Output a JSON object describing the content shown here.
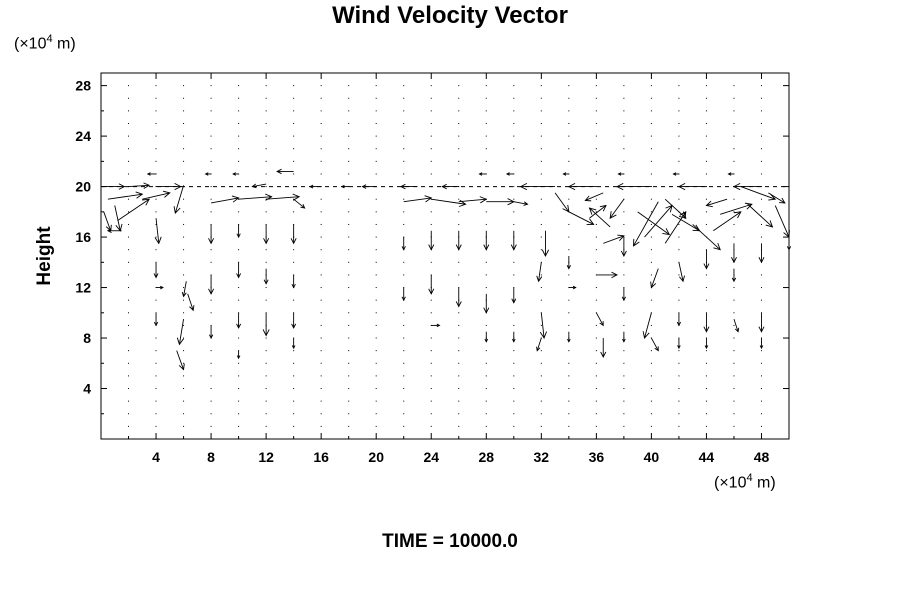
{
  "chart_data": {
    "type": "vector-field",
    "title": "Wind Velocity Vector",
    "ylabel": "Height",
    "y_unit": {
      "prefix": "(×10",
      "exp": "4",
      "suffix": " m)"
    },
    "x_unit": {
      "prefix": "(×10",
      "exp": "4",
      "suffix": " m)"
    },
    "xlim": [
      0,
      50
    ],
    "ylim": [
      0,
      29
    ],
    "xticks": [
      4,
      8,
      12,
      16,
      20,
      24,
      28,
      32,
      36,
      40,
      44,
      48
    ],
    "yticks": [
      4,
      8,
      12,
      16,
      20,
      24,
      28
    ],
    "grid": false,
    "reference_line_y": 20,
    "vectors": [
      {
        "x": 0.2,
        "y": 20.0,
        "u": 1.5,
        "v": 0.0
      },
      {
        "x": 2.0,
        "y": 20.0,
        "u": 1.5,
        "v": 0.1
      },
      {
        "x": 4.0,
        "y": 20.0,
        "u": 1.8,
        "v": 0.0
      },
      {
        "x": 6.0,
        "y": 20.1,
        "u": -0.6,
        "v": -2.2
      },
      {
        "x": 0.5,
        "y": 19.0,
        "u": 2.5,
        "v": 0.4
      },
      {
        "x": 1.0,
        "y": 18.5,
        "u": 0.4,
        "v": -2.0
      },
      {
        "x": 3.0,
        "y": 19.0,
        "u": 2.0,
        "v": 0.5
      },
      {
        "x": 1.2,
        "y": 17.3,
        "u": 2.3,
        "v": 1.7
      },
      {
        "x": 8.0,
        "y": 18.7,
        "u": 2.0,
        "v": 0.4
      },
      {
        "x": 10.0,
        "y": 19.0,
        "u": 2.4,
        "v": 0.2
      },
      {
        "x": 12.0,
        "y": 19.0,
        "u": 2.4,
        "v": 0.2
      },
      {
        "x": 14.0,
        "y": 19.0,
        "u": 0.8,
        "v": -0.7
      },
      {
        "x": 12.0,
        "y": 20.2,
        "u": -1.0,
        "v": -0.2
      },
      {
        "x": 14.0,
        "y": 21.2,
        "u": -1.2,
        "v": 0.0
      },
      {
        "x": 22.0,
        "y": 18.8,
        "u": 2.0,
        "v": 0.3
      },
      {
        "x": 24.0,
        "y": 19.0,
        "u": 2.5,
        "v": -0.4
      },
      {
        "x": 26.0,
        "y": 18.8,
        "u": 2.0,
        "v": 0.2
      },
      {
        "x": 28.0,
        "y": 18.8,
        "u": 2.0,
        "v": 0.0
      },
      {
        "x": 30.0,
        "y": 18.8,
        "u": 1.0,
        "v": -0.2
      },
      {
        "x": 23.0,
        "y": 20.0,
        "u": -1.2,
        "v": 0.0
      },
      {
        "x": 26.0,
        "y": 20.0,
        "u": -1.2,
        "v": 0.0
      },
      {
        "x": 33.0,
        "y": 20.0,
        "u": -2.5,
        "v": 0.0
      },
      {
        "x": 36.0,
        "y": 20.0,
        "u": -2.0,
        "v": 0.0
      },
      {
        "x": 40.0,
        "y": 20.0,
        "u": -2.5,
        "v": 0.0
      },
      {
        "x": 44.0,
        "y": 20.0,
        "u": -2.0,
        "v": 0.0
      },
      {
        "x": 48.0,
        "y": 20.0,
        "u": -2.0,
        "v": 0.0
      },
      {
        "x": 35.5,
        "y": 17.5,
        "u": 1.2,
        "v": 1.0
      },
      {
        "x": 37.0,
        "y": 16.8,
        "u": -1.5,
        "v": 1.5
      },
      {
        "x": 39.0,
        "y": 18.0,
        "u": 2.3,
        "v": -1.8
      },
      {
        "x": 40.5,
        "y": 18.8,
        "u": -1.8,
        "v": -3.5
      },
      {
        "x": 41.5,
        "y": 17.8,
        "u": 2.0,
        "v": -1.3
      },
      {
        "x": 43.0,
        "y": 17.0,
        "u": 2.0,
        "v": -2.0
      },
      {
        "x": 45.0,
        "y": 17.8,
        "u": 2.3,
        "v": 0.8
      },
      {
        "x": 47.0,
        "y": 18.6,
        "u": 1.8,
        "v": -1.8
      },
      {
        "x": 49.0,
        "y": 18.5,
        "u": 1.0,
        "v": -2.5
      },
      {
        "x": 39.5,
        "y": 16.0,
        "u": 2.0,
        "v": 2.5
      },
      {
        "x": 41.0,
        "y": 15.5,
        "u": 1.5,
        "v": 2.5
      },
      {
        "x": 44.5,
        "y": 16.5,
        "u": 2.0,
        "v": 1.5
      },
      {
        "x": 46.5,
        "y": 20.0,
        "u": 2.5,
        "v": -1.0
      },
      {
        "x": 48.5,
        "y": 19.5,
        "u": 1.2,
        "v": -0.8
      },
      {
        "x": 33.0,
        "y": 19.5,
        "u": 1.0,
        "v": -1.5
      },
      {
        "x": 34.0,
        "y": 18.0,
        "u": 1.8,
        "v": -1.0
      },
      {
        "x": 38.0,
        "y": 19.0,
        "u": -1.0,
        "v": -1.5
      },
      {
        "x": 36.5,
        "y": 15.5,
        "u": 1.5,
        "v": 0.6
      },
      {
        "x": 0.2,
        "y": 18.0,
        "u": 0.5,
        "v": -1.5
      },
      {
        "x": 1.5,
        "y": 16.5,
        "u": -1.0,
        "v": 0.0
      },
      {
        "x": 6.3,
        "y": 11.5,
        "u": 0.4,
        "v": -1.3
      },
      {
        "x": 6.0,
        "y": 9.5,
        "u": -0.3,
        "v": -2.0
      },
      {
        "x": 5.5,
        "y": 7.0,
        "u": 0.5,
        "v": -1.5
      },
      {
        "x": 6.2,
        "y": 12.5,
        "u": -0.2,
        "v": -1.2
      },
      {
        "x": 32.0,
        "y": 10.0,
        "u": 0.2,
        "v": -2.0
      },
      {
        "x": 32.0,
        "y": 8.0,
        "u": -0.3,
        "v": -1.0
      },
      {
        "x": 32.0,
        "y": 14.0,
        "u": -0.2,
        "v": -1.5
      },
      {
        "x": 32.3,
        "y": 16.5,
        "u": 0.0,
        "v": -2.0
      },
      {
        "x": 40.0,
        "y": 10.0,
        "u": -0.5,
        "v": -2.0
      },
      {
        "x": 40.0,
        "y": 8.0,
        "u": 0.5,
        "v": -1.0
      },
      {
        "x": 40.5,
        "y": 13.5,
        "u": -0.5,
        "v": -1.5
      },
      {
        "x": 36.0,
        "y": 13.0,
        "u": 1.5,
        "v": 0.0
      },
      {
        "x": 36.5,
        "y": 8.0,
        "u": 0.0,
        "v": -1.5
      },
      {
        "x": 36.0,
        "y": 10.0,
        "u": 0.5,
        "v": -1.0
      },
      {
        "x": 12.0,
        "y": 10.0,
        "u": 0.0,
        "v": -1.8
      },
      {
        "x": 12.0,
        "y": 13.5,
        "u": 0.0,
        "v": -1.2
      },
      {
        "x": 12.0,
        "y": 17.0,
        "u": 0.0,
        "v": -1.5
      },
      {
        "x": 4.0,
        "y": 17.5,
        "u": 0.2,
        "v": -2.0
      },
      {
        "x": 4.0,
        "y": 14.0,
        "u": 0.0,
        "v": -1.2
      },
      {
        "x": 4.0,
        "y": 12.0,
        "u": 0.5,
        "v": 0.0
      },
      {
        "x": 4.0,
        "y": 10.0,
        "u": 0.0,
        "v": -1.0
      },
      {
        "x": 8.0,
        "y": 17.0,
        "u": 0.0,
        "v": -1.5
      },
      {
        "x": 8.0,
        "y": 13.0,
        "u": 0.0,
        "v": -1.5
      },
      {
        "x": 8.0,
        "y": 9.0,
        "u": 0.0,
        "v": -1.0
      },
      {
        "x": 10.0,
        "y": 17.0,
        "u": 0.0,
        "v": -1.0
      },
      {
        "x": 10.0,
        "y": 14.0,
        "u": 0.0,
        "v": -1.2
      },
      {
        "x": 10.0,
        "y": 10.0,
        "u": 0.0,
        "v": -1.2
      },
      {
        "x": 14.0,
        "y": 17.0,
        "u": 0.0,
        "v": -1.5
      },
      {
        "x": 14.0,
        "y": 13.0,
        "u": 0.0,
        "v": -1.0
      },
      {
        "x": 14.0,
        "y": 10.0,
        "u": 0.0,
        "v": -1.2
      },
      {
        "x": 22.0,
        "y": 16.0,
        "u": 0.0,
        "v": -1.0
      },
      {
        "x": 22.0,
        "y": 12.0,
        "u": 0.0,
        "v": -1.0
      },
      {
        "x": 24.0,
        "y": 16.5,
        "u": 0.0,
        "v": -1.5
      },
      {
        "x": 24.0,
        "y": 13.0,
        "u": 0.0,
        "v": -1.5
      },
      {
        "x": 24.0,
        "y": 9.0,
        "u": 0.6,
        "v": 0.0
      },
      {
        "x": 26.0,
        "y": 16.5,
        "u": 0.0,
        "v": -1.5
      },
      {
        "x": 26.0,
        "y": 12.0,
        "u": 0.0,
        "v": -1.5
      },
      {
        "x": 28.0,
        "y": 16.5,
        "u": 0.0,
        "v": -1.5
      },
      {
        "x": 28.0,
        "y": 11.5,
        "u": 0.0,
        "v": -1.5
      },
      {
        "x": 30.0,
        "y": 16.5,
        "u": 0.0,
        "v": -1.5
      },
      {
        "x": 30.0,
        "y": 12.0,
        "u": 0.0,
        "v": -1.2
      },
      {
        "x": 34.0,
        "y": 12.0,
        "u": 0.5,
        "v": 0.0
      },
      {
        "x": 34.0,
        "y": 14.5,
        "u": 0.0,
        "v": -1.0
      },
      {
        "x": 38.0,
        "y": 16.0,
        "u": 0.0,
        "v": -1.5
      },
      {
        "x": 38.0,
        "y": 12.0,
        "u": 0.0,
        "v": -1.0
      },
      {
        "x": 42.0,
        "y": 14.0,
        "u": 0.3,
        "v": -1.5
      },
      {
        "x": 42.0,
        "y": 10.0,
        "u": 0.0,
        "v": -1.0
      },
      {
        "x": 44.0,
        "y": 15.0,
        "u": 0.0,
        "v": -1.5
      },
      {
        "x": 44.0,
        "y": 10.0,
        "u": 0.0,
        "v": -1.5
      },
      {
        "x": 46.0,
        "y": 15.5,
        "u": 0.0,
        "v": -1.5
      },
      {
        "x": 46.0,
        "y": 13.5,
        "u": 0.0,
        "v": -1.0
      },
      {
        "x": 46.0,
        "y": 9.5,
        "u": 0.3,
        "v": -1.0
      },
      {
        "x": 48.0,
        "y": 15.5,
        "u": 0.0,
        "v": -1.5
      },
      {
        "x": 48.0,
        "y": 10.0,
        "u": 0.0,
        "v": -1.5
      },
      {
        "x": 50.0,
        "y": 16.0,
        "u": 0.0,
        "v": -1.0
      },
      {
        "x": 16.0,
        "y": 20.0,
        "u": -0.8,
        "v": 0.0
      },
      {
        "x": 18.0,
        "y": 20.0,
        "u": -0.5,
        "v": 0.0
      },
      {
        "x": 20.0,
        "y": 20.0,
        "u": -1.0,
        "v": 0.0
      },
      {
        "x": 4.0,
        "y": 21.0,
        "u": -0.6,
        "v": 0.0
      },
      {
        "x": 8.0,
        "y": 21.0,
        "u": -0.4,
        "v": 0.0
      },
      {
        "x": 10.0,
        "y": 21.0,
        "u": -0.4,
        "v": 0.0
      },
      {
        "x": 28.0,
        "y": 21.0,
        "u": -0.5,
        "v": 0.0
      },
      {
        "x": 30.0,
        "y": 21.0,
        "u": -0.5,
        "v": 0.0
      },
      {
        "x": 34.0,
        "y": 21.0,
        "u": -0.4,
        "v": 0.0
      },
      {
        "x": 38.0,
        "y": 21.0,
        "u": -0.4,
        "v": 0.0
      },
      {
        "x": 42.0,
        "y": 21.0,
        "u": -0.4,
        "v": 0.0
      },
      {
        "x": 46.0,
        "y": 21.0,
        "u": -0.4,
        "v": 0.0
      },
      {
        "x": 14.0,
        "y": 8.0,
        "u": 0.0,
        "v": -0.8
      },
      {
        "x": 10.0,
        "y": 7.0,
        "u": 0.0,
        "v": -0.6
      },
      {
        "x": 28.0,
        "y": 8.5,
        "u": 0.0,
        "v": -0.8
      },
      {
        "x": 30.0,
        "y": 8.5,
        "u": 0.0,
        "v": -0.8
      },
      {
        "x": 34.0,
        "y": 8.5,
        "u": 0.0,
        "v": -0.8
      },
      {
        "x": 38.0,
        "y": 8.5,
        "u": 0.0,
        "v": -0.8
      },
      {
        "x": 42.0,
        "y": 8.0,
        "u": 0.0,
        "v": -0.8
      },
      {
        "x": 44.0,
        "y": 8.0,
        "u": 0.0,
        "v": -0.8
      },
      {
        "x": 48.0,
        "y": 8.0,
        "u": 0.0,
        "v": -0.8
      },
      {
        "x": 36.5,
        "y": 19.5,
        "u": -1.3,
        "v": -0.6
      },
      {
        "x": 41.0,
        "y": 19.0,
        "u": 1.5,
        "v": -1.5
      },
      {
        "x": 45.5,
        "y": 19.0,
        "u": -1.5,
        "v": -0.5
      }
    ]
  },
  "time_label": "TIME = 10000.0"
}
